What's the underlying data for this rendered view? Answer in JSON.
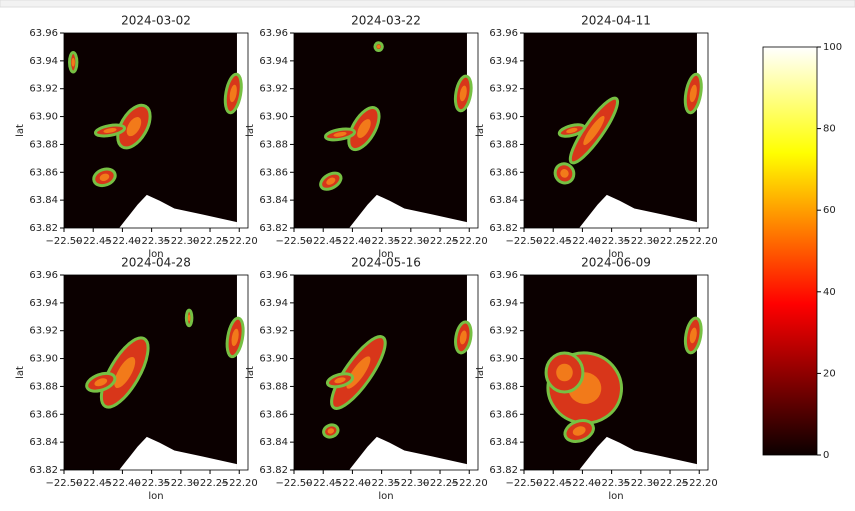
{
  "chart_data": [
    {
      "type": "heatmap",
      "title": "2024-03-02",
      "xlabel": "lon",
      "ylabel": "lat",
      "xlim": [
        -22.5,
        -22.185
      ],
      "ylim": [
        63.82,
        63.96
      ],
      "xticks": [
        {
          "value": -22.5,
          "label": "−22.50"
        },
        {
          "value": -22.45,
          "label": "−22.45"
        },
        {
          "value": -22.4,
          "label": "−22.40"
        },
        {
          "value": -22.35,
          "label": "−22.35"
        },
        {
          "value": -22.3,
          "label": "−22.30"
        },
        {
          "value": -22.25,
          "label": "−22.25"
        },
        {
          "value": -22.2,
          "label": "−22.20"
        }
      ],
      "yticks": [
        63.82,
        63.84,
        63.86,
        63.88,
        {
          "value": 63.9,
          "label": "63.90"
        },
        63.92,
        63.94,
        63.96
      ]
    },
    {
      "type": "heatmap",
      "title": "2024-03-22",
      "xlabel": "lon",
      "ylabel": "lat",
      "xlim": [
        -22.5,
        -22.185
      ],
      "ylim": [
        63.82,
        63.96
      ],
      "xticks": [
        {
          "value": -22.5,
          "label": "−22.50"
        },
        {
          "value": -22.45,
          "label": "−22.45"
        },
        {
          "value": -22.4,
          "label": "−22.40"
        },
        {
          "value": -22.35,
          "label": "−22.35"
        },
        {
          "value": -22.3,
          "label": "−22.30"
        },
        {
          "value": -22.25,
          "label": "−22.25"
        },
        {
          "value": -22.2,
          "label": "−22.20"
        }
      ],
      "yticks": [
        63.82,
        63.84,
        63.86,
        63.88,
        {
          "value": 63.9,
          "label": "63.90"
        },
        63.92,
        63.94,
        63.96
      ]
    },
    {
      "type": "heatmap",
      "title": "2024-04-11",
      "xlabel": "lon",
      "ylabel": "lat",
      "xlim": [
        -22.5,
        -22.185
      ],
      "ylim": [
        63.82,
        63.96
      ],
      "xticks": [
        {
          "value": -22.5,
          "label": "−22.50"
        },
        {
          "value": -22.45,
          "label": "−22.45"
        },
        {
          "value": -22.4,
          "label": "−22.40"
        },
        {
          "value": -22.35,
          "label": "−22.35"
        },
        {
          "value": -22.3,
          "label": "−22.30"
        },
        {
          "value": -22.25,
          "label": "−22.25"
        },
        {
          "value": -22.2,
          "label": "−22.20"
        }
      ],
      "yticks": [
        63.82,
        63.84,
        63.86,
        63.88,
        {
          "value": 63.9,
          "label": "63.90"
        },
        63.92,
        63.94,
        63.96
      ]
    },
    {
      "type": "heatmap",
      "title": "2024-04-28",
      "xlabel": "lon",
      "ylabel": "lat",
      "xlim": [
        -22.5,
        -22.185
      ],
      "ylim": [
        63.82,
        63.96
      ],
      "xticks": [
        {
          "value": -22.5,
          "label": "−22.50"
        },
        {
          "value": -22.45,
          "label": "−22.45"
        },
        {
          "value": -22.4,
          "label": "−22.40"
        },
        {
          "value": -22.35,
          "label": "−22.35"
        },
        {
          "value": -22.3,
          "label": "−22.30"
        },
        {
          "value": -22.25,
          "label": "−22.25"
        },
        {
          "value": -22.2,
          "label": "−22.20"
        }
      ],
      "yticks": [
        63.82,
        63.84,
        63.86,
        63.88,
        {
          "value": 63.9,
          "label": "63.90"
        },
        63.92,
        63.94,
        63.96
      ]
    },
    {
      "type": "heatmap",
      "title": "2024-05-16",
      "xlabel": "lon",
      "ylabel": "lat",
      "xlim": [
        -22.5,
        -22.185
      ],
      "ylim": [
        63.82,
        63.96
      ],
      "xticks": [
        {
          "value": -22.5,
          "label": "−22.50"
        },
        {
          "value": -22.45,
          "label": "−22.45"
        },
        {
          "value": -22.4,
          "label": "−22.40"
        },
        {
          "value": -22.35,
          "label": "−22.35"
        },
        {
          "value": -22.3,
          "label": "−22.30"
        },
        {
          "value": -22.25,
          "label": "−22.25"
        },
        {
          "value": -22.2,
          "label": "−22.20"
        }
      ],
      "yticks": [
        63.82,
        63.84,
        63.86,
        63.88,
        {
          "value": 63.9,
          "label": "63.90"
        },
        63.92,
        63.94,
        63.96
      ]
    },
    {
      "type": "heatmap",
      "title": "2024-06-09",
      "xlabel": "lon",
      "ylabel": "lat",
      "xlim": [
        -22.5,
        -22.185
      ],
      "ylim": [
        63.82,
        63.96
      ],
      "xticks": [
        {
          "value": -22.5,
          "label": "−22.50"
        },
        {
          "value": -22.45,
          "label": "−22.45"
        },
        {
          "value": -22.4,
          "label": "−22.40"
        },
        {
          "value": -22.35,
          "label": "−22.35"
        },
        {
          "value": -22.3,
          "label": "−22.30"
        },
        {
          "value": -22.25,
          "label": "−22.25"
        },
        {
          "value": -22.2,
          "label": "−22.20"
        }
      ],
      "yticks": [
        63.82,
        63.84,
        63.86,
        63.88,
        {
          "value": 63.9,
          "label": "63.90"
        },
        63.92,
        63.94,
        63.96
      ]
    }
  ],
  "colorbar": {
    "ylim": [
      0,
      100
    ],
    "yticks": [
      0,
      20,
      40,
      60,
      80,
      100
    ]
  }
}
